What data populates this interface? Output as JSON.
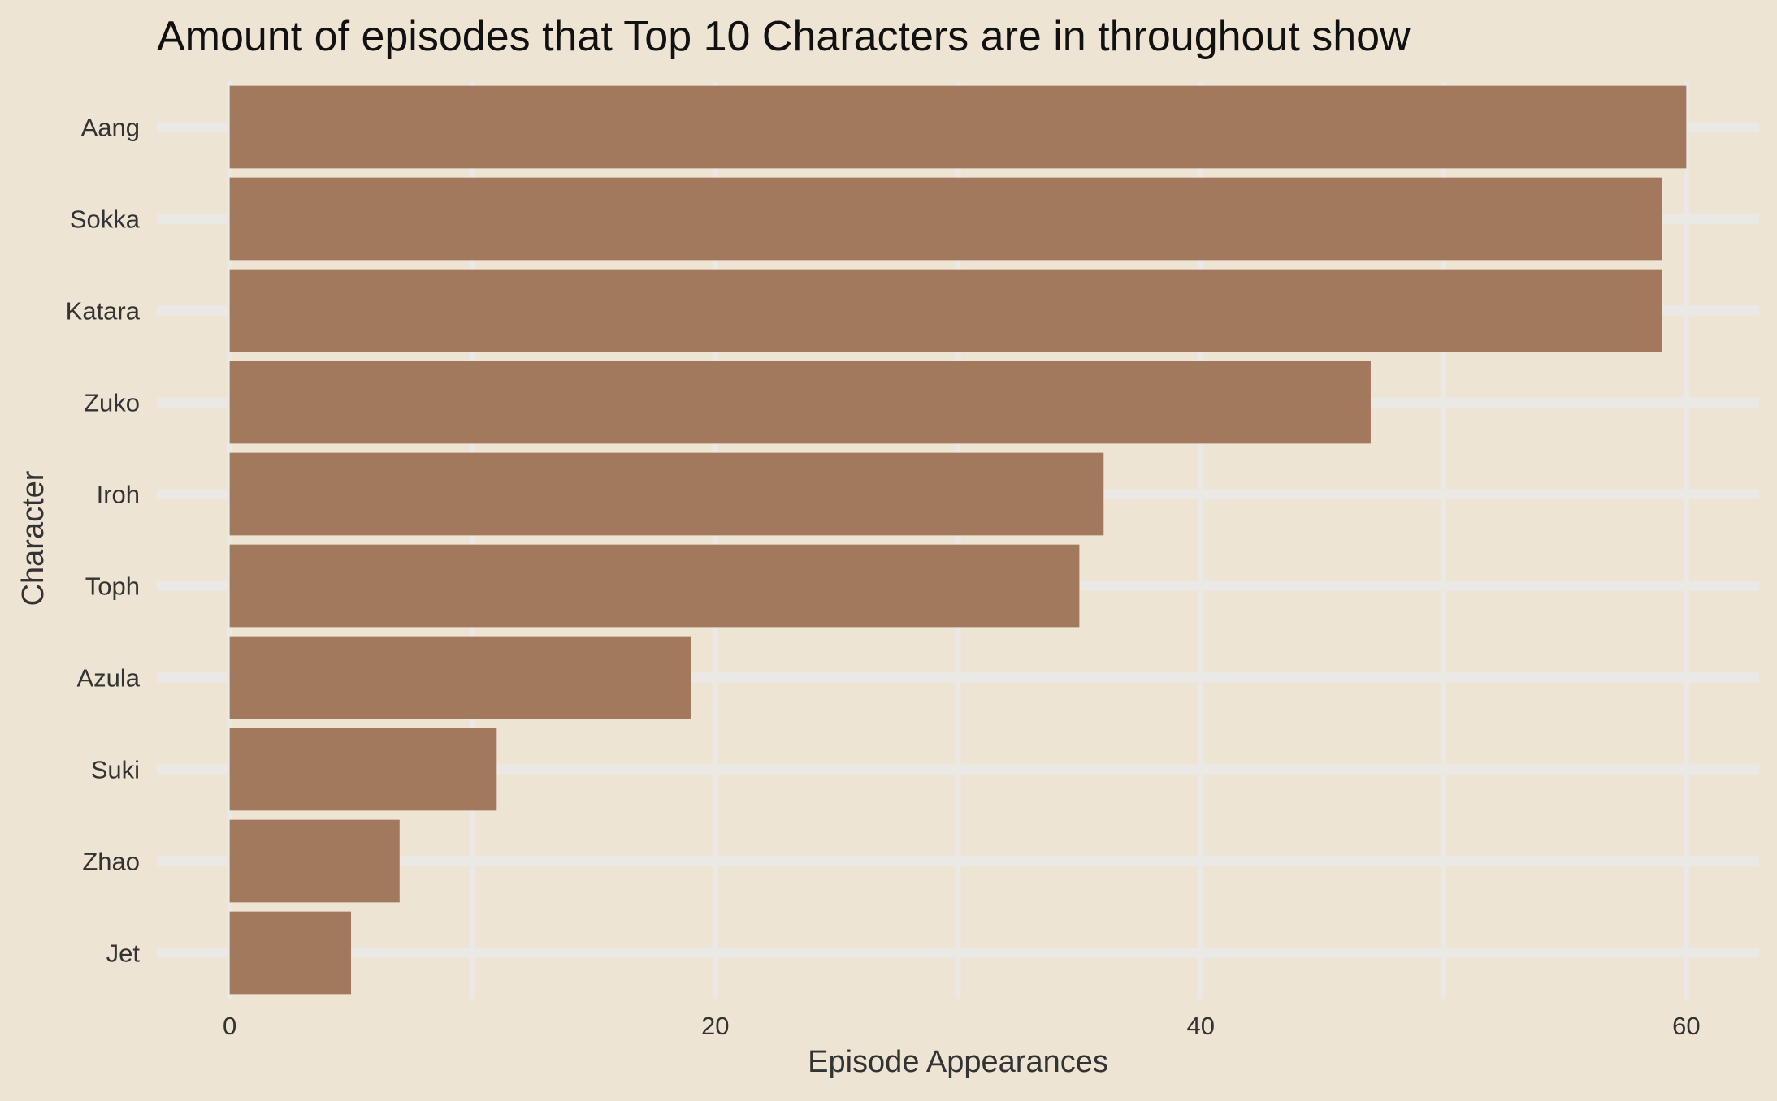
{
  "chart_data": {
    "type": "bar",
    "orientation": "horizontal",
    "title": "Amount of episodes that Top 10 Characters are in throughout show",
    "xlabel": "Episode Appearances",
    "ylabel": "Character",
    "categories": [
      "Aang",
      "Sokka",
      "Katara",
      "Zuko",
      "Iroh",
      "Toph",
      "Azula",
      "Suki",
      "Zhao",
      "Jet"
    ],
    "values": [
      60,
      59,
      59,
      47,
      36,
      35,
      19,
      11,
      7,
      5
    ],
    "xlim": [
      -3,
      63
    ],
    "xticks": [
      0,
      20,
      40,
      60
    ],
    "xtick_labels": [
      "0",
      "20",
      "40",
      "60"
    ],
    "grid": true,
    "colors": {
      "bar": "#A2795C",
      "background": "#EDE4D4",
      "grid": "#EBE9E6",
      "title_text": "#111111",
      "axis_text": "#333333",
      "axis_title": "#333333"
    }
  }
}
